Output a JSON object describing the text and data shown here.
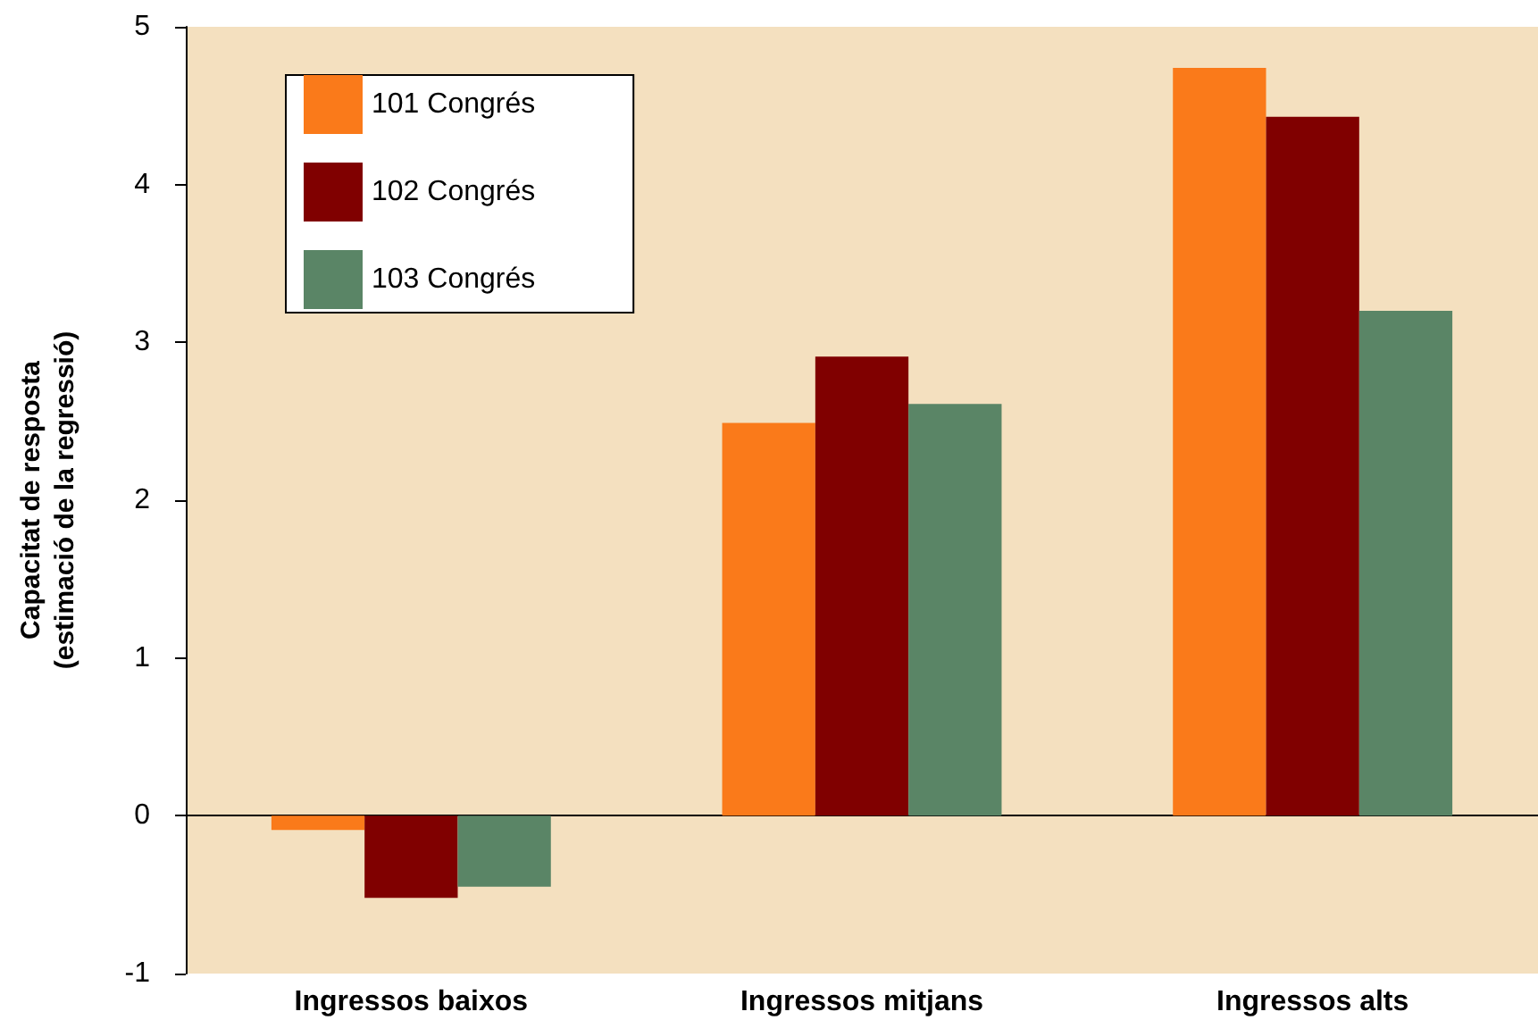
{
  "chart_data": {
    "type": "bar",
    "ylabel": "Capacitat de resposta\n(estimació de la regressió)",
    "categories": [
      "Ingressos baixos",
      "Ingressos mitjans",
      "Ingressos alts"
    ],
    "series": [
      {
        "name": "101 Congrés",
        "color": "#fa7a1a",
        "values": [
          -0.09,
          2.49,
          4.74
        ]
      },
      {
        "name": "102 Congrés",
        "color": "#800000",
        "values": [
          -0.52,
          2.91,
          4.43
        ]
      },
      {
        "name": "103 Congrés",
        "color": "#5a8566",
        "values": [
          -0.45,
          2.61,
          3.2
        ]
      }
    ],
    "ylim": [
      -1,
      5
    ],
    "yticks": [
      -1,
      0,
      1,
      2,
      3,
      4,
      5
    ],
    "legend": "top left"
  }
}
